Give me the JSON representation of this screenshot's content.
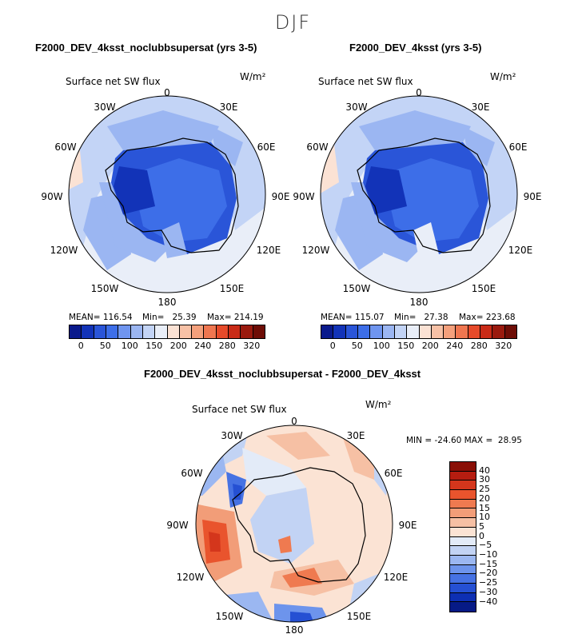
{
  "season_title": "DJF",
  "variable": "Surface net SW flux",
  "units": "W/m²",
  "lon_labels": [
    "0",
    "30E",
    "60E",
    "90E",
    "120E",
    "150E",
    "180",
    "150W",
    "120W",
    "90W",
    "60W",
    "30W"
  ],
  "panels": [
    {
      "title": "F2000_DEV_4ksst_noclubbsupersat (yrs 3-5)",
      "mean": "MEAN= 116.54",
      "min": "Min=   25.39",
      "max": "Max= 214.19"
    },
    {
      "title": "F2000_DEV_4ksst (yrs 3-5)",
      "mean": "MEAN= 115.07",
      "min": "Min=   27.38",
      "max": "Max= 223.68"
    }
  ],
  "colorbar_top": {
    "labels": [
      "0",
      "50",
      "100",
      "150",
      "200",
      "240",
      "280",
      "320"
    ],
    "colors": [
      "#0a1a8c",
      "#1233b8",
      "#2a55d8",
      "#3d6ee8",
      "#6f95ef",
      "#9bb6f2",
      "#c3d4f6",
      "#e9eef8",
      "#fbe2d4",
      "#f7c1a6",
      "#f4a07c",
      "#ef7650",
      "#e64a2a",
      "#c92b17",
      "#9a1a0e",
      "#6e0d06"
    ]
  },
  "diff": {
    "title": "F2000_DEV_4ksst_noclubbsupersat - F2000_DEV_4ksst",
    "minmax": "MIN = -24.60 MAX =  28.95",
    "labels": [
      "40",
      "30",
      "25",
      "20",
      "15",
      "10",
      "5",
      "0",
      "−5",
      "−10",
      "−15",
      "−20",
      "−25",
      "−30",
      "−40"
    ],
    "colors": [
      "#8a0f06",
      "#b61d10",
      "#d4361c",
      "#e9542d",
      "#ef7a50",
      "#f29d78",
      "#f6c0a4",
      "#fbe3d4",
      "#e3ebf8",
      "#c2d3f4",
      "#9bb7f1",
      "#6d94ec",
      "#4672e3",
      "#2550d3",
      "#0d2fb3",
      "#061a86"
    ]
  }
}
